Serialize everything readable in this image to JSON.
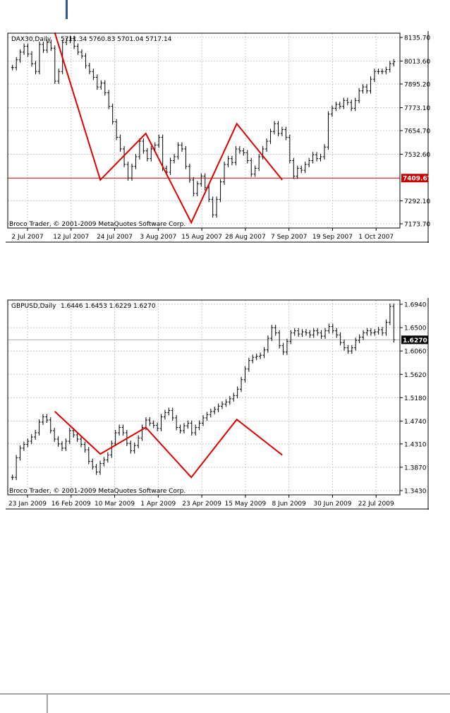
{
  "chart_data": [
    {
      "type": "ohlc",
      "title": "DAX30,Daily",
      "header_values": "5711.34 5760.83 5701.04 5717.14",
      "watermark": "Broco Trader, © 2001-2009 MetaQuotes Software Corp.",
      "ylim": [
        7173.7,
        8135.7
      ],
      "yticks": [
        8135.7,
        8013.6,
        7895.2,
        7773.1,
        7654.7,
        7532.6,
        7292.1,
        7173.7
      ],
      "ytick_labels": [
        "8135.70",
        "8013.60",
        "7895.20",
        "7773.10",
        "7654.70",
        "7532.60",
        "7292.10",
        "7173.70"
      ],
      "xtick_labels": [
        "2 Jul 2007",
        "12 Jul 2007",
        "24 Jul 2007",
        "3 Aug 2007",
        "15 Aug 2007",
        "28 Aug 2007",
        "7 Sep 2007",
        "19 Sep 2007",
        "1 Oct 2007"
      ],
      "hline": {
        "value": 7409.67,
        "label": "7409.67",
        "color": "#cc0000"
      },
      "zigzag": [
        8160,
        7400,
        7640,
        7180,
        7690,
        7400
      ],
      "zigzag_color": "#e00000",
      "closes": [
        7980,
        8020,
        8060,
        8090,
        8050,
        8000,
        7960,
        8100,
        8070,
        8110,
        8080,
        7910,
        7960,
        8110,
        8120,
        8130,
        8090,
        8060,
        8040,
        7990,
        7960,
        7930,
        7880,
        7900,
        7850,
        7780,
        7700,
        7620,
        7560,
        7480,
        7410,
        7470,
        7520,
        7600,
        7550,
        7510,
        7560,
        7580,
        7620,
        7460,
        7440,
        7500,
        7520,
        7580,
        7560,
        7470,
        7400,
        7330,
        7380,
        7420,
        7360,
        7300,
        7220,
        7300,
        7390,
        7480,
        7510,
        7490,
        7560,
        7550,
        7540,
        7500,
        7430,
        7460,
        7520,
        7560,
        7600,
        7650,
        7690,
        7640,
        7660,
        7620,
        7500,
        7420,
        7460,
        7450,
        7480,
        7500,
        7530,
        7510,
        7520,
        7570,
        7740,
        7770,
        7790,
        7780,
        7810,
        7800,
        7770,
        7810,
        7860,
        7880,
        7860,
        7920,
        7960,
        7960,
        7960,
        7970,
        8000,
        8010
      ],
      "grid": true,
      "bar_color": "#000000"
    },
    {
      "type": "ohlc",
      "title": "GBPUSD,Daily",
      "header_values": "1.6446 1.6453 1.6229 1.6270",
      "watermark": "Broco Trader, © 2001-2009 MetaQuotes Software Corp.",
      "ylim": [
        1.343,
        1.694
      ],
      "yticks": [
        1.694,
        1.65,
        1.606,
        1.562,
        1.518,
        1.474,
        1.431,
        1.387,
        1.343
      ],
      "ytick_labels": [
        "1.6940",
        "1.6500",
        "1.6060",
        "1.5620",
        "1.5180",
        "1.4740",
        "1.4310",
        "1.3870",
        "1.3430"
      ],
      "xtick_labels": [
        "23 Jan 2009",
        "16 Feb 2009",
        "10 Mar 2009",
        "1 Apr 2009",
        "23 Apr 2009",
        "15 May 2009",
        "8 Jun 2009",
        "30 Jun 2009",
        "22 Jul 2009"
      ],
      "hline": {
        "value": 1.627,
        "label": "1.6270",
        "color": "#b0b0b0"
      },
      "zigzag": [
        1.492,
        1.412,
        1.462,
        1.368,
        1.477,
        1.41
      ],
      "zigzag_color": "#e00000",
      "closes": [
        1.368,
        1.405,
        1.423,
        1.43,
        1.436,
        1.444,
        1.452,
        1.472,
        1.482,
        1.476,
        1.456,
        1.44,
        1.431,
        1.423,
        1.436,
        1.456,
        1.448,
        1.44,
        1.43,
        1.42,
        1.398,
        1.388,
        1.378,
        1.394,
        1.401,
        1.41,
        1.432,
        1.452,
        1.462,
        1.452,
        1.432,
        1.418,
        1.428,
        1.442,
        1.462,
        1.476,
        1.47,
        1.466,
        1.46,
        1.482,
        1.49,
        1.494,
        1.48,
        1.462,
        1.456,
        1.465,
        1.47,
        1.452,
        1.462,
        1.47,
        1.48,
        1.486,
        1.492,
        1.496,
        1.502,
        1.506,
        1.51,
        1.516,
        1.522,
        1.534,
        1.552,
        1.572,
        1.588,
        1.594,
        1.596,
        1.598,
        1.608,
        1.63,
        1.65,
        1.64,
        1.616,
        1.604,
        1.624,
        1.64,
        1.644,
        1.638,
        1.642,
        1.64,
        1.636,
        1.644,
        1.64,
        1.634,
        1.644,
        1.652,
        1.644,
        1.636,
        1.622,
        1.612,
        1.606,
        1.612,
        1.626,
        1.632,
        1.64,
        1.644,
        1.64,
        1.642,
        1.646,
        1.64,
        1.66,
        1.69,
        1.627
      ]
    }
  ]
}
